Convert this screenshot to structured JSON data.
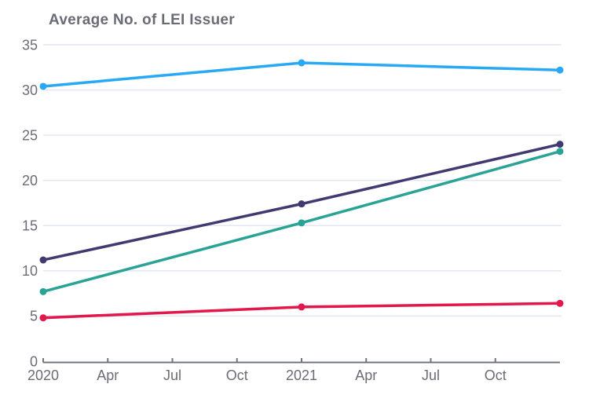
{
  "chart_data": {
    "type": "line",
    "title": "Average No. of LEI Issuer",
    "x_axis": {
      "tick_labels": [
        "2020",
        "Apr",
        "Jul",
        "Oct",
        "2021",
        "Apr",
        "Jul",
        "Oct"
      ],
      "tick_months": [
        0,
        3,
        6,
        9,
        12,
        15,
        18,
        21
      ],
      "range_months": [
        0,
        24
      ]
    },
    "y_axis": {
      "ticks": [
        0,
        5,
        10,
        15,
        20,
        25,
        30,
        35
      ],
      "range": [
        0,
        35
      ]
    },
    "x_months": [
      0,
      12,
      24
    ],
    "series": [
      {
        "name": "sky-blue-line",
        "color": "#29A9F3",
        "values": [
          30.4,
          33.0,
          32.2
        ]
      },
      {
        "name": "navy-line",
        "color": "#413A70",
        "values": [
          11.2,
          17.4,
          24.0
        ]
      },
      {
        "name": "teal-line",
        "color": "#2AA396",
        "values": [
          7.7,
          15.3,
          23.2
        ]
      },
      {
        "name": "crimson-line",
        "color": "#E2174B",
        "values": [
          4.8,
          6.0,
          6.4
        ]
      }
    ],
    "grid": true,
    "legend": false,
    "colors": {
      "grid": "#E3E7F2",
      "axis": "#71747D",
      "labels": "#6C6C77",
      "title": "#6B6B76"
    }
  }
}
